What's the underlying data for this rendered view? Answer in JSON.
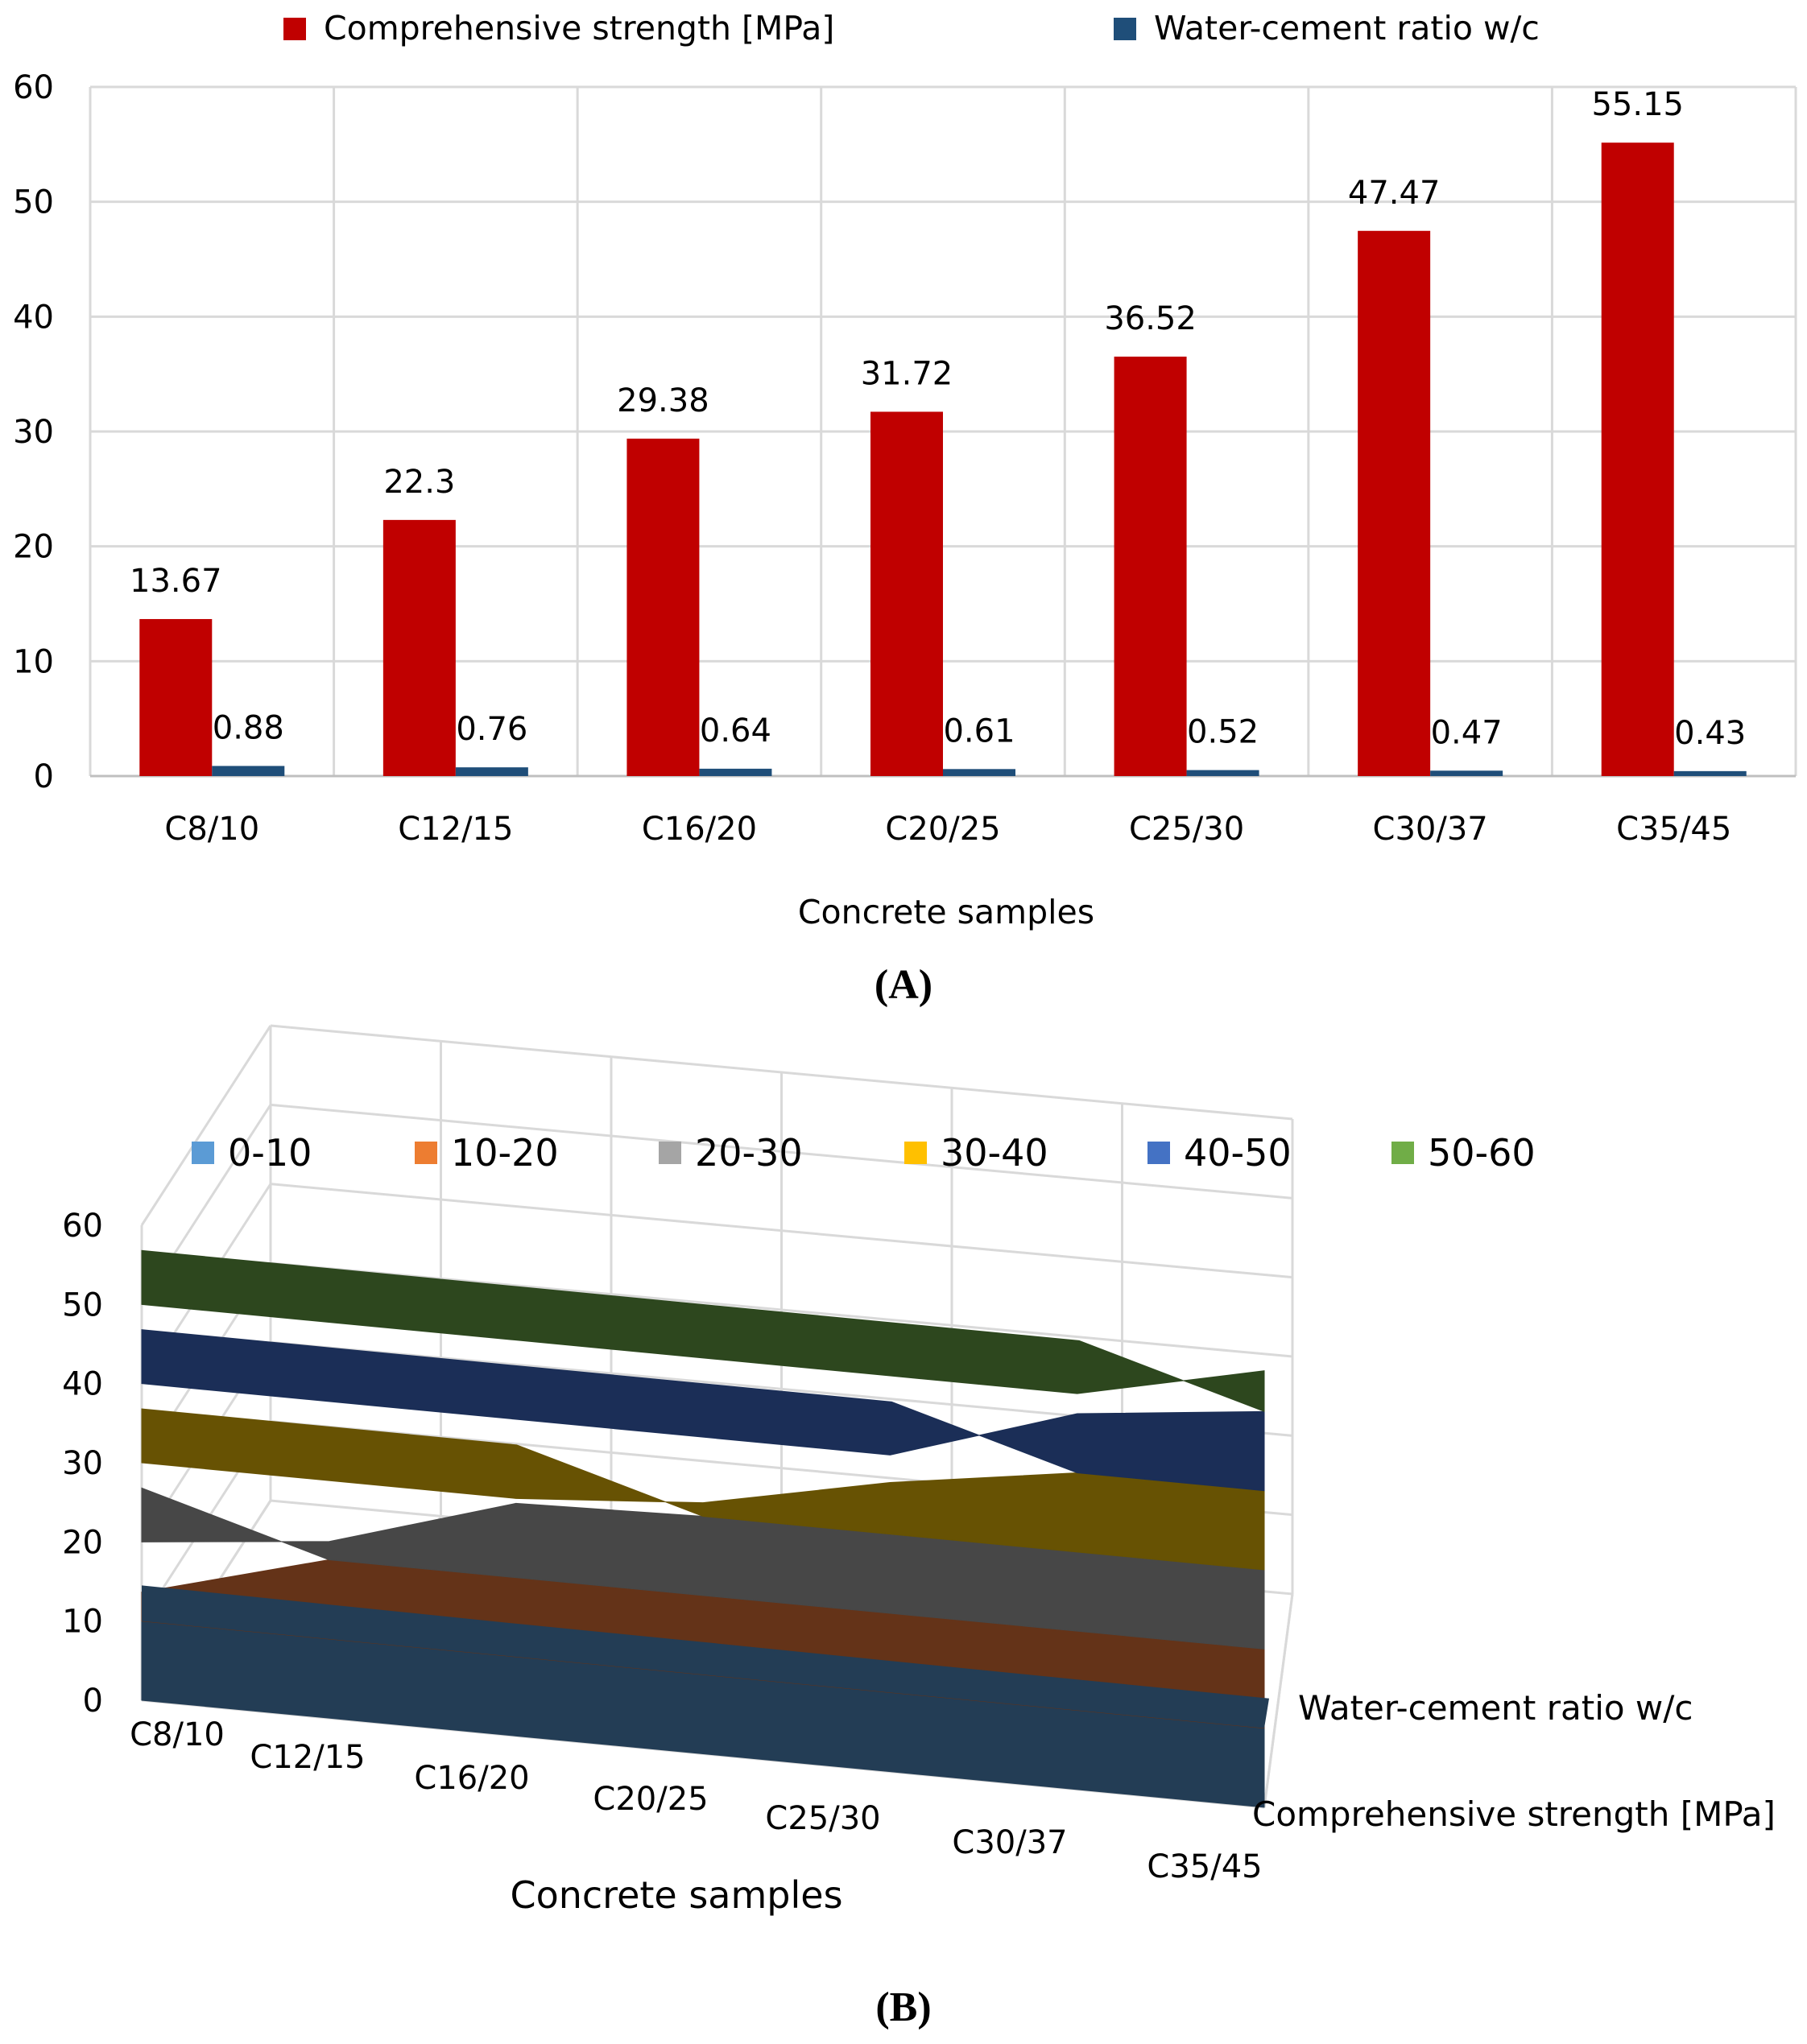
{
  "chart_data": [
    {
      "type": "bar",
      "panel": "(A)",
      "categories": [
        "C8/10",
        "C12/15",
        "C16/20",
        "C20/25",
        "C25/30",
        "C30/37",
        "C35/45"
      ],
      "series": [
        {
          "name": "Comprehensive strength [MPa]",
          "color": "#c00000",
          "values": [
            13.67,
            22.3,
            29.38,
            31.72,
            36.52,
            47.47,
            55.15
          ],
          "labels": [
            "13.67",
            "22.3",
            "29.38",
            "31.72",
            "36.52",
            "47.47",
            "55.15"
          ]
        },
        {
          "name": "Water-cement ratio w/c",
          "color": "#1f4e79",
          "values": [
            0.88,
            0.76,
            0.64,
            0.61,
            0.52,
            0.47,
            0.43
          ],
          "labels": [
            "0.88",
            "0.76",
            "0.64",
            "0.61",
            "0.52",
            "0.47",
            "0.43"
          ]
        }
      ],
      "yticks": [
        "0",
        "10",
        "20",
        "30",
        "40",
        "50",
        "60"
      ],
      "ylim": [
        0,
        60
      ],
      "xlabel": "Concrete samples",
      "ylabel": "",
      "grid": true,
      "legend": "top"
    },
    {
      "type": "surface",
      "panel": "(B)",
      "categories": [
        "C8/10",
        "C12/15",
        "C16/20",
        "C20/25",
        "C25/30",
        "C30/37",
        "C35/45"
      ],
      "series": [
        {
          "name": "Water-cement ratio w/c",
          "values": [
            0.88,
            0.76,
            0.64,
            0.61,
            0.52,
            0.47,
            0.43
          ]
        },
        {
          "name": "Comprehensive strength [MPa]",
          "values": [
            13.67,
            22.3,
            29.38,
            31.72,
            36.52,
            47.47,
            55.15
          ]
        }
      ],
      "bands": [
        {
          "label": "0-10",
          "range": [
            0,
            10
          ],
          "legend_color": "#5b9bd5",
          "surface_color": "#233d55"
        },
        {
          "label": "10-20",
          "range": [
            10,
            20
          ],
          "legend_color": "#ed7d31",
          "surface_color": "#643318"
        },
        {
          "label": "20-30",
          "range": [
            20,
            30
          ],
          "legend_color": "#a5a5a5",
          "surface_color": "#474747"
        },
        {
          "label": "30-40",
          "range": [
            30,
            40
          ],
          "legend_color": "#ffc000",
          "surface_color": "#675203"
        },
        {
          "label": "40-50",
          "range": [
            40,
            50
          ],
          "legend_color": "#4472c4",
          "surface_color": "#1b2e57"
        },
        {
          "label": "50-60",
          "range": [
            50,
            60
          ],
          "legend_color": "#70ad47",
          "surface_color": "#2d471e"
        }
      ],
      "zticks": [
        "0",
        "10",
        "20",
        "30",
        "40",
        "50",
        "60"
      ],
      "zlim": [
        0,
        60
      ],
      "xlabel": "Concrete samples",
      "depth_labels": [
        "Water-cement ratio w/c",
        "Comprehensive strength [MPa]"
      ],
      "legend": "top"
    }
  ],
  "captions": {
    "a": "(A)",
    "b": "(B)"
  }
}
